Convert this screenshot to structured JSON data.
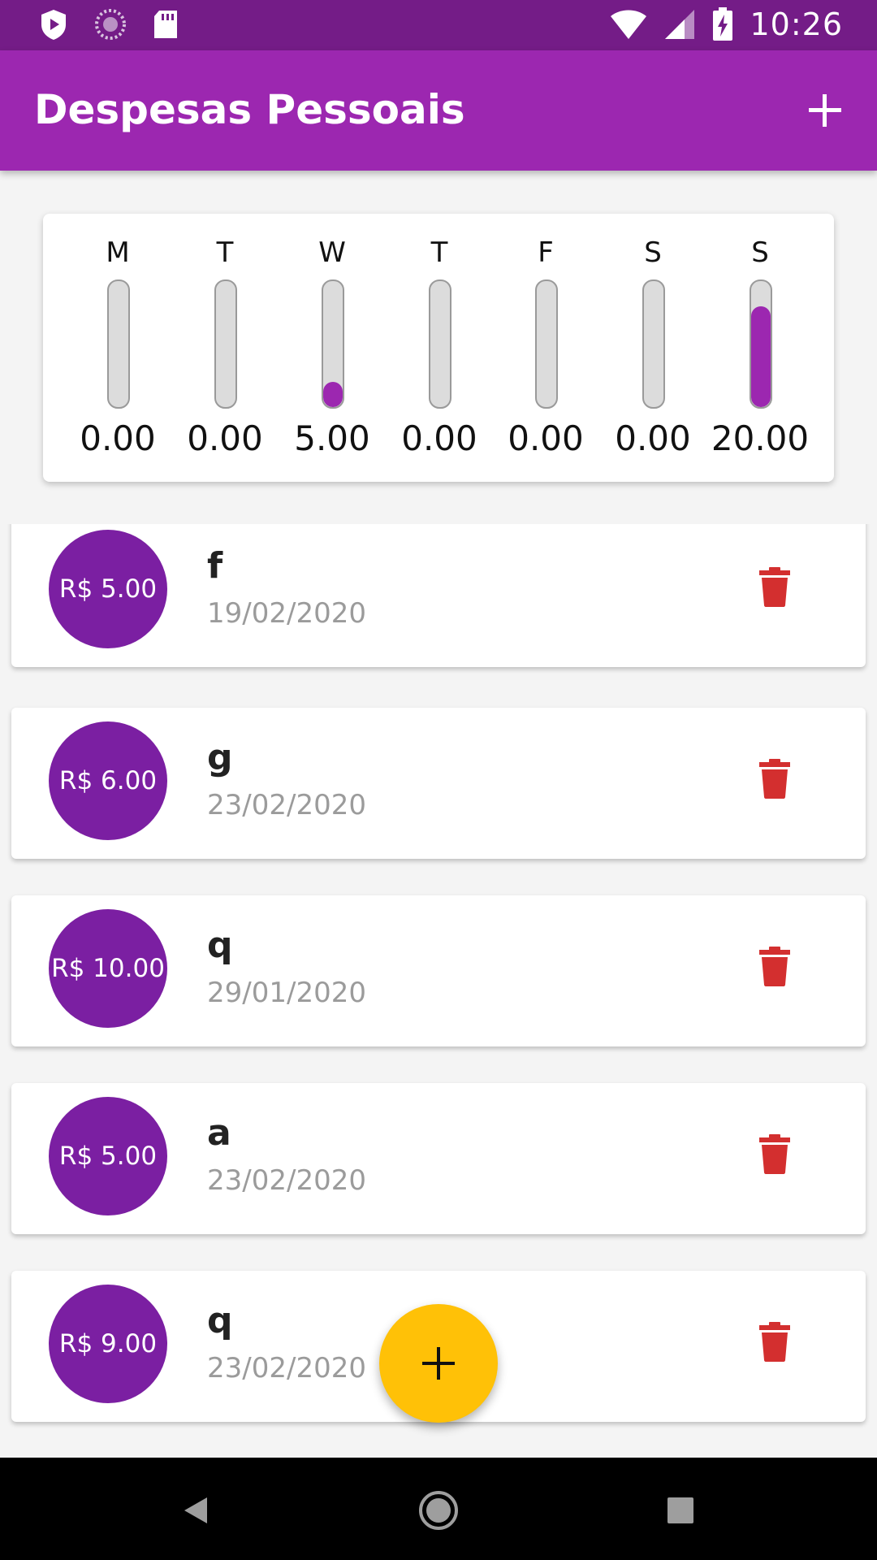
{
  "status_bar": {
    "time": "10:26",
    "icons": [
      "play-protect-icon",
      "sync-icon",
      "sd-card-icon",
      "wifi-icon",
      "signal-icon",
      "battery-charging-icon"
    ]
  },
  "app_bar": {
    "title": "Despesas Pessoais",
    "action_icon": "add-icon"
  },
  "colors": {
    "primary": "#9c27b0",
    "primary_dark": "#741c87",
    "avatar": "#7b1fa2",
    "accent": "#ffc107",
    "delete": "#d32f2f"
  },
  "chart_data": {
    "type": "bar",
    "title": "",
    "categories": [
      "M",
      "T",
      "W",
      "T",
      "F",
      "S",
      "S"
    ],
    "values": [
      0.0,
      0.0,
      5.0,
      0.0,
      0.0,
      0.0,
      20.0
    ],
    "value_labels": [
      "0.00",
      "0.00",
      "5.00",
      "0.00",
      "0.00",
      "0.00",
      "20.00"
    ],
    "ylim": [
      0,
      25
    ],
    "xlabel": "",
    "ylabel": ""
  },
  "transactions": [
    {
      "amount": "R$ 5.00",
      "title": "f",
      "date": "19/02/2020"
    },
    {
      "amount": "R$ 6.00",
      "title": "g",
      "date": "23/02/2020"
    },
    {
      "amount": "R$ 10.00",
      "title": "q",
      "date": "29/01/2020"
    },
    {
      "amount": "R$ 5.00",
      "title": "a",
      "date": "23/02/2020"
    },
    {
      "amount": "R$ 9.00",
      "title": "q",
      "date": "23/02/2020"
    }
  ],
  "fab": {
    "icon": "add-icon"
  },
  "nav": {
    "icons": [
      "back-icon",
      "home-icon",
      "recents-icon"
    ]
  }
}
